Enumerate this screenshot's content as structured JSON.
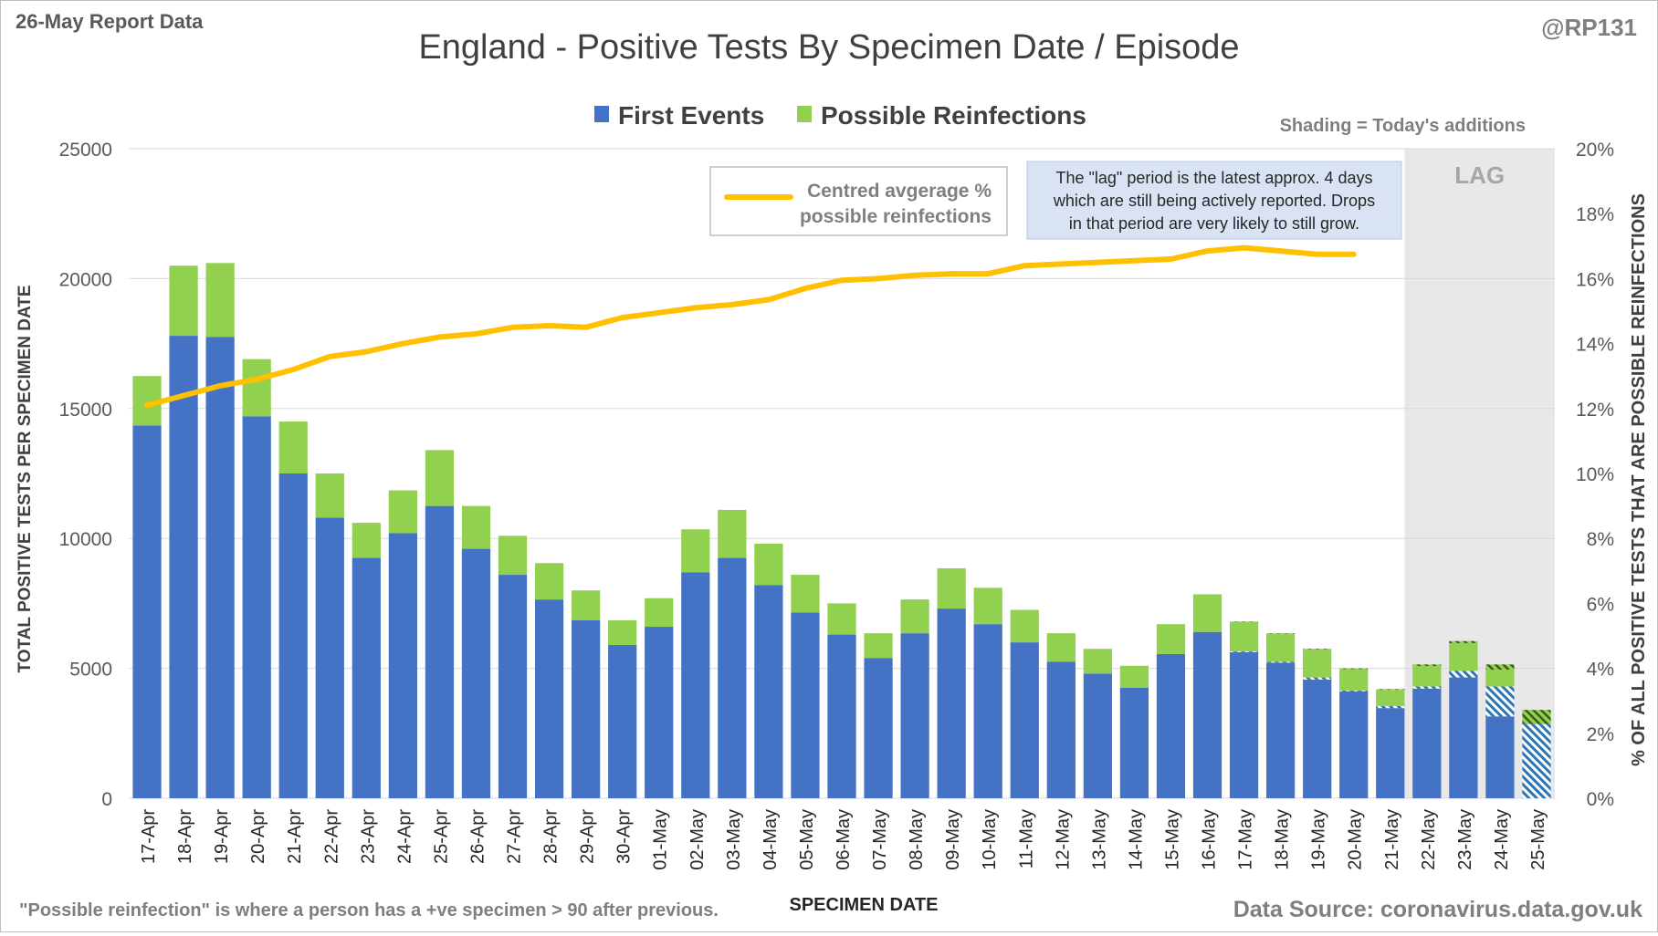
{
  "header": {
    "report_label": "26-May Report Data",
    "handle": "@RP131"
  },
  "chart_data": {
    "type": "bar",
    "stacked": true,
    "title": "England - Positive Tests By Specimen Date / Episode",
    "xlabel": "SPECIMEN DATE",
    "ylabel": "TOTAL POSITIVE TESTS PER SPECIMEN DATE",
    "y2label": "% OF ALL POSITIVE TESTS THAT ARE POSSIBLE REINFECTIONS",
    "ylim": [
      0,
      25000
    ],
    "yticks": [
      "0",
      "5000",
      "10000",
      "15000",
      "20000",
      "25000"
    ],
    "y2lim": [
      0,
      20
    ],
    "y2ticks": [
      "0%",
      "2%",
      "4%",
      "6%",
      "8%",
      "10%",
      "12%",
      "14%",
      "16%",
      "18%",
      "20%"
    ],
    "grid": true,
    "legend_position": "top",
    "categories": [
      "17-Apr",
      "18-Apr",
      "19-Apr",
      "20-Apr",
      "21-Apr",
      "22-Apr",
      "23-Apr",
      "24-Apr",
      "25-Apr",
      "26-Apr",
      "27-Apr",
      "28-Apr",
      "29-Apr",
      "30-Apr",
      "01-May",
      "02-May",
      "03-May",
      "04-May",
      "05-May",
      "06-May",
      "07-May",
      "08-May",
      "09-May",
      "10-May",
      "11-May",
      "12-May",
      "13-May",
      "14-May",
      "15-May",
      "16-May",
      "17-May",
      "18-May",
      "19-May",
      "20-May",
      "21-May",
      "22-May",
      "23-May",
      "24-May",
      "25-May"
    ],
    "series": [
      {
        "name": "First Events",
        "color": "#4472c4",
        "values": [
          14350,
          17800,
          17750,
          14700,
          12500,
          10800,
          9250,
          10200,
          11250,
          9600,
          8600,
          7650,
          6850,
          5900,
          6600,
          8700,
          9250,
          8200,
          7150,
          6300,
          5400,
          6350,
          7300,
          6700,
          6000,
          5250,
          4800,
          4250,
          5550,
          6400,
          5650,
          5250,
          4650,
          4150,
          3550,
          4300,
          4900,
          4300,
          2850
        ]
      },
      {
        "name": "Possible Reinfections",
        "color": "#92d050",
        "values": [
          1900,
          2700,
          2850,
          2200,
          2000,
          1700,
          1350,
          1650,
          2150,
          1650,
          1500,
          1400,
          1150,
          950,
          1100,
          1650,
          1850,
          1600,
          1450,
          1200,
          950,
          1300,
          1550,
          1400,
          1250,
          1100,
          950,
          850,
          1150,
          1450,
          1150,
          1100,
          1100,
          850,
          650,
          850,
          1150,
          850,
          550
        ]
      }
    ],
    "todays_additions": {
      "note": "Shading = Today's additions",
      "first_events": [
        0,
        0,
        0,
        0,
        0,
        0,
        0,
        0,
        0,
        0,
        0,
        0,
        0,
        0,
        0,
        0,
        0,
        0,
        0,
        0,
        0,
        0,
        0,
        0,
        0,
        0,
        0,
        0,
        0,
        0,
        30,
        30,
        80,
        30,
        80,
        80,
        250,
        1150,
        2850
      ],
      "possible_reinfections": [
        0,
        0,
        0,
        0,
        0,
        0,
        0,
        0,
        0,
        0,
        0,
        0,
        0,
        0,
        0,
        0,
        0,
        0,
        0,
        0,
        0,
        0,
        0,
        0,
        0,
        0,
        0,
        0,
        0,
        0,
        20,
        20,
        30,
        30,
        30,
        60,
        80,
        200,
        550
      ]
    },
    "line_series": {
      "name": "Centred avgerage % possible reinfections",
      "axis": "secondary",
      "color": "#ffc000",
      "values": [
        12.1,
        12.4,
        12.7,
        12.9,
        13.2,
        13.6,
        13.75,
        14.0,
        14.2,
        14.3,
        14.5,
        14.55,
        14.5,
        14.8,
        14.95,
        15.1,
        15.2,
        15.35,
        15.7,
        15.95,
        16.0,
        16.1,
        16.15,
        16.15,
        16.4,
        16.45,
        16.5,
        16.55,
        16.6,
        16.85,
        16.95,
        16.85,
        16.75,
        16.75,
        null,
        null,
        null,
        null,
        null
      ]
    },
    "lag_region": {
      "label": "LAG",
      "from": "22-May",
      "to": "25-May"
    },
    "annotations": {
      "lag_note": [
        "The \"lag\" period is the latest approx. 4 days",
        "which are still being actively reported.  Drops",
        "in that period are very likely to still grow."
      ],
      "line_legend": [
        "Centred avgerage %",
        "possible reinfections"
      ]
    }
  },
  "footer": {
    "definition": "\"Possible reinfection\" is where a person has a +ve specimen > 90 after previous.",
    "source": "Data Source: coronavirus.data.gov.uk"
  }
}
